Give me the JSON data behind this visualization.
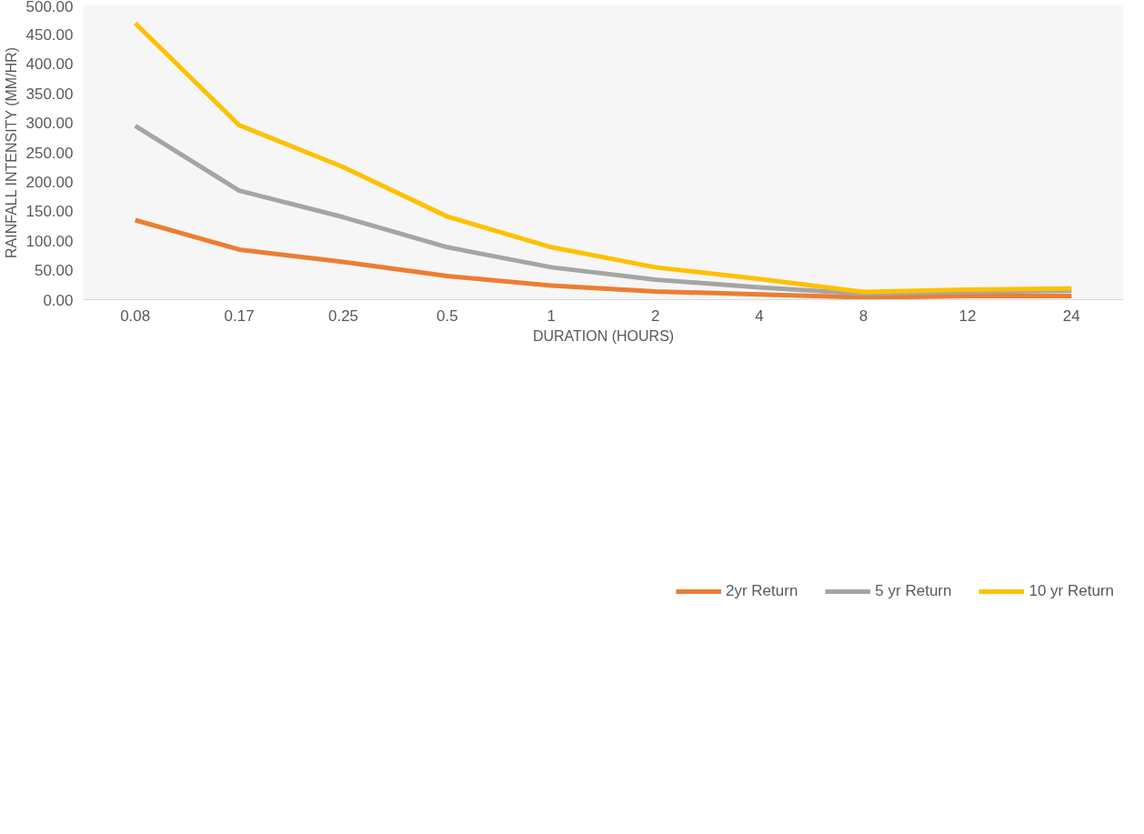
{
  "chart_data": {
    "type": "line",
    "xlabel": "DURATION (HOURS)",
    "ylabel": "RAINFALL INTENSITY (MM/HR)",
    "categories": [
      "0.08",
      "0.17",
      "0.25",
      "0.5",
      "1",
      "2",
      "4",
      "8",
      "12",
      "24"
    ],
    "series": [
      {
        "name": "2yr Return",
        "color": "#ed7d31",
        "values": [
          135,
          85,
          64,
          40,
          24,
          14,
          9,
          4,
          6,
          6
        ]
      },
      {
        "name": "5 yr Return",
        "color": "#a5a5a5",
        "values": [
          295,
          185,
          140,
          89,
          55,
          34,
          21,
          10,
          13,
          15
        ]
      },
      {
        "name": "10 yr Return",
        "color": "#ffc000",
        "values": [
          469,
          296,
          225,
          141,
          89,
          55,
          35,
          13,
          17,
          19
        ]
      }
    ],
    "ylim": [
      0,
      500
    ],
    "yticks": [
      {
        "value": 0,
        "label": "0.00"
      },
      {
        "value": 50,
        "label": "50.00"
      },
      {
        "value": 100,
        "label": "100.00"
      },
      {
        "value": 150,
        "label": "150.00"
      },
      {
        "value": 200,
        "label": "200.00"
      },
      {
        "value": 250,
        "label": "250.00"
      },
      {
        "value": 300,
        "label": "300.00"
      },
      {
        "value": 350,
        "label": "350.00"
      },
      {
        "value": 400,
        "label": "400.00"
      },
      {
        "value": 450,
        "label": "450.00"
      },
      {
        "value": 500,
        "label": "500.00"
      }
    ],
    "grid": false,
    "legend": "bottom",
    "marker": "none",
    "line_style": "solid"
  }
}
